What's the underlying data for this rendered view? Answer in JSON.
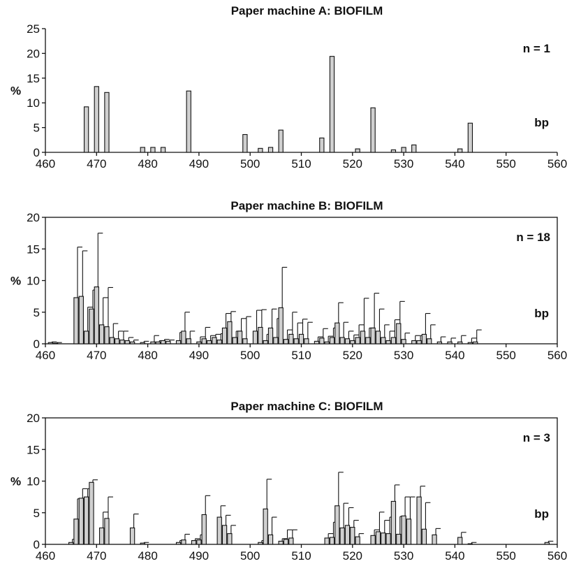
{
  "chart_data": [
    {
      "type": "bar",
      "title": "Paper machine A: BIOFILM",
      "ylabel": "%",
      "xlabel": "bp",
      "annotation": "n = 1",
      "framed": false,
      "xlim": [
        460,
        560
      ],
      "ylim": [
        0,
        25
      ],
      "xticks": [
        460,
        470,
        480,
        490,
        500,
        510,
        520,
        530,
        540,
        550,
        560
      ],
      "yticks": [
        0,
        5,
        10,
        15,
        20,
        25
      ],
      "x": [
        468,
        470,
        472,
        479,
        481,
        483,
        488,
        499,
        502,
        504,
        506,
        514,
        516,
        521,
        524,
        528,
        530,
        532,
        541,
        543
      ],
      "values": [
        9.2,
        13.3,
        12.1,
        1.0,
        1.0,
        1.0,
        12.4,
        3.6,
        0.8,
        1.0,
        4.5,
        2.9,
        19.4,
        0.7,
        9.0,
        0.5,
        1.0,
        1.5,
        0.7,
        5.9
      ]
    },
    {
      "type": "bar",
      "title": "Paper machine B: BIOFILM",
      "ylabel": "%",
      "xlabel": "bp",
      "annotation": "n = 18",
      "framed": true,
      "xlim": [
        460,
        560
      ],
      "ylim": [
        0,
        20
      ],
      "xticks": [
        460,
        470,
        480,
        490,
        500,
        510,
        520,
        530,
        540,
        550,
        560
      ],
      "yticks": [
        0,
        5,
        10,
        15,
        20
      ],
      "x": [
        461,
        462,
        466,
        467,
        468,
        469,
        470,
        471,
        472,
        473,
        474,
        475,
        476,
        477,
        479,
        481,
        482,
        483,
        484,
        486,
        487,
        488,
        490,
        491,
        492,
        493,
        494,
        495,
        496,
        497,
        498,
        499,
        501,
        502,
        503,
        504,
        505,
        506,
        507,
        508,
        509,
        510,
        511,
        513,
        514,
        515,
        516,
        517,
        518,
        519,
        520,
        521,
        522,
        523,
        524,
        525,
        526,
        527,
        528,
        529,
        530,
        532,
        533,
        534,
        535,
        537,
        539,
        541,
        543,
        544
      ],
      "values": [
        0.2,
        0.1,
        7.3,
        7.5,
        2.0,
        5.5,
        9.0,
        3.0,
        2.7,
        1.0,
        0.8,
        0.6,
        0.5,
        0.3,
        0.2,
        0.3,
        0.3,
        0.5,
        0.4,
        0.5,
        2.0,
        0.8,
        0.3,
        0.8,
        0.5,
        1.0,
        0.6,
        2.5,
        3.5,
        1.0,
        2.0,
        0.8,
        2.0,
        2.6,
        0.5,
        2.5,
        1.0,
        5.7,
        0.7,
        1.5,
        0.8,
        1.5,
        0.8,
        0.4,
        0.9,
        0.3,
        1.0,
        3.3,
        1.0,
        0.8,
        0.5,
        1.0,
        2.0,
        1.0,
        2.5,
        2.0,
        1.0,
        0.5,
        1.0,
        3.2,
        0.7,
        0.5,
        0.5,
        1.5,
        0.8,
        0.3,
        0.3,
        0.3,
        0.2,
        0.3
      ],
      "errors": [
        0.1,
        0.1,
        8.0,
        7.2,
        3.8,
        3.0,
        8.5,
        4.3,
        6.2,
        2.2,
        1.2,
        1.4,
        0.5,
        0.3,
        0.2,
        1.0,
        0.2,
        0.2,
        0.2,
        1.3,
        3.0,
        1.2,
        0.8,
        1.8,
        0.8,
        0.5,
        1.0,
        2.3,
        1.6,
        1.0,
        2.0,
        3.5,
        3.3,
        2.8,
        1.0,
        3.0,
        3.0,
        6.4,
        1.5,
        3.5,
        2.5,
        2.4,
        2.6,
        0.7,
        1.5,
        0.9,
        1.5,
        3.2,
        2.4,
        1.2,
        0.9,
        2.0,
        5.2,
        1.5,
        5.5,
        3.5,
        2.0,
        1.5,
        2.8,
        3.5,
        1.0,
        0.8,
        0.8,
        3.3,
        2.2,
        0.8,
        0.6,
        1.0,
        0.7,
        1.9
      ]
    },
    {
      "type": "bar",
      "title": "Paper machine C: BIOFILM",
      "ylabel": "%",
      "xlabel": "bp",
      "annotation": "n = 3",
      "framed": true,
      "xlim": [
        460,
        560
      ],
      "ylim": [
        0,
        20
      ],
      "xticks": [
        460,
        470,
        480,
        490,
        500,
        510,
        520,
        530,
        540,
        550,
        560
      ],
      "yticks": [
        0,
        5,
        10,
        15,
        20
      ],
      "x": [
        465,
        466,
        467,
        468,
        469,
        471,
        472,
        477,
        479,
        486,
        487,
        489,
        490,
        491,
        494,
        495,
        496,
        502,
        503,
        504,
        506,
        507,
        508,
        515,
        516,
        517,
        518,
        519,
        520,
        521,
        524,
        525,
        526,
        527,
        528,
        529,
        530,
        531,
        533,
        534,
        536,
        541,
        543,
        558
      ],
      "values": [
        0.3,
        4.0,
        7.3,
        7.5,
        9.8,
        2.6,
        4.1,
        2.6,
        0.2,
        0.3,
        0.7,
        0.6,
        0.7,
        4.7,
        4.3,
        3.0,
        1.7,
        0.3,
        5.6,
        1.5,
        0.5,
        0.8,
        1.0,
        1.0,
        1.1,
        6.1,
        2.6,
        3.0,
        2.7,
        1.2,
        1.4,
        2.0,
        1.8,
        1.7,
        6.8,
        1.6,
        4.5,
        4.0,
        7.5,
        2.4,
        1.5,
        1.1,
        0.1,
        0.3
      ],
      "errors": [
        0.5,
        3.2,
        1.5,
        1.3,
        0.4,
        2.5,
        3.4,
        2.2,
        0.1,
        0.3,
        0.9,
        0.3,
        0.8,
        3.0,
        1.8,
        1.6,
        1.3,
        0.3,
        4.7,
        2.8,
        0.4,
        1.5,
        1.3,
        0.7,
        2.4,
        5.3,
        3.9,
        2.8,
        1.1,
        0.5,
        0.9,
        3.1,
        2.0,
        2.6,
        2.6,
        2.8,
        3.0,
        3.5,
        1.7,
        4.2,
        1.0,
        0.8,
        0.2,
        0.2
      ]
    }
  ]
}
